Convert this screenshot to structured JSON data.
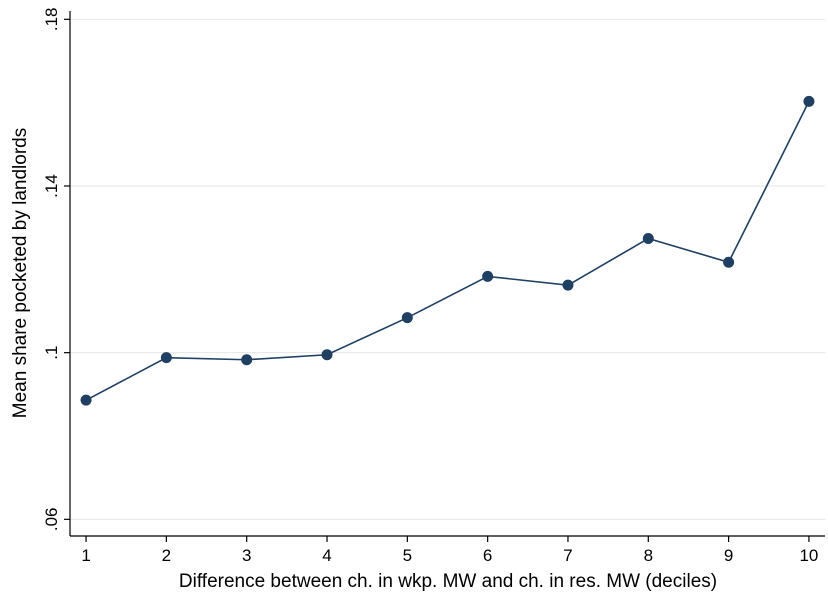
{
  "chart_data": {
    "type": "line",
    "title": "",
    "xlabel": "Difference between ch. in wkp. MW and ch. in res. MW (deciles)",
    "ylabel": "Mean share pocketed by landlords",
    "x": [
      1,
      2,
      3,
      4,
      5,
      6,
      7,
      8,
      9,
      10
    ],
    "x_ticks": [
      "1",
      "2",
      "3",
      "4",
      "5",
      "6",
      "7",
      "8",
      "9",
      "10"
    ],
    "y_ticks": [
      {
        "value": 0.06,
        "label": ".06"
      },
      {
        "value": 0.1,
        "label": ".1"
      },
      {
        "value": 0.14,
        "label": ".14"
      },
      {
        "value": 0.18,
        "label": ".18"
      }
    ],
    "ylim": [
      0.056,
      0.182
    ],
    "xlim": [
      0.8,
      10.2
    ],
    "grid": "horizontal",
    "series": [
      {
        "values": [
          0.0886,
          0.0988,
          0.0983,
          0.0995,
          0.1084,
          0.1183,
          0.1162,
          0.1274,
          0.1217,
          0.1603
        ]
      }
    ],
    "colors": {
      "line": "#1f3f63",
      "marker": "#1f3f63",
      "grid": "#e6e6e6",
      "axis": "#000000"
    }
  }
}
